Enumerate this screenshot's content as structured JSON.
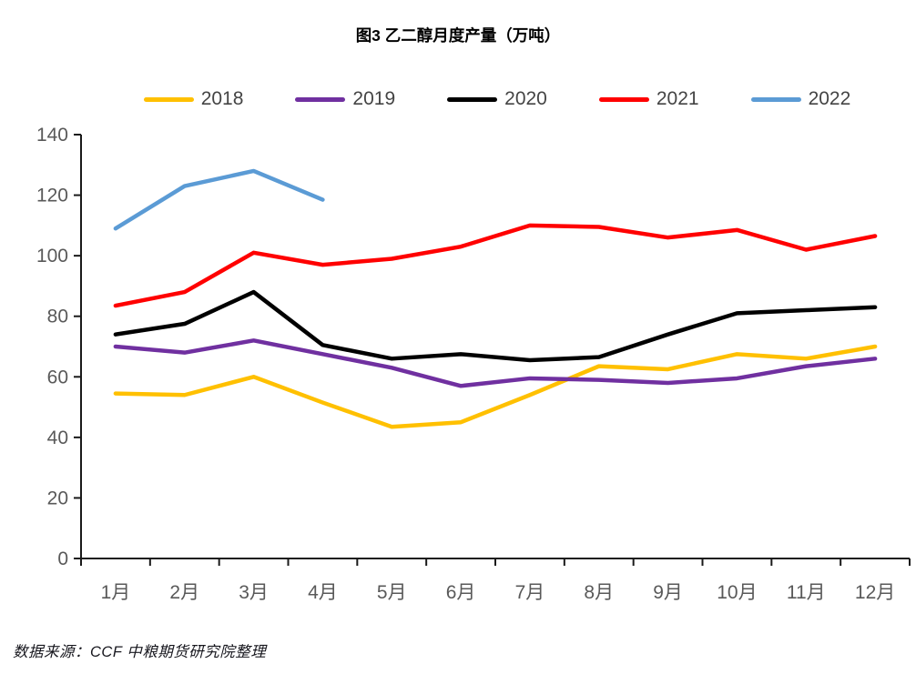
{
  "title": "图3 乙二醇月度产量（万吨）",
  "footer": "数据来源：CCF 中粮期货研究院整理",
  "chart_data": {
    "type": "line",
    "title": "图3 乙二醇月度产量（万吨）",
    "categories": [
      "1月",
      "2月",
      "3月",
      "4月",
      "5月",
      "6月",
      "7月",
      "8月",
      "9月",
      "10月",
      "11月",
      "12月"
    ],
    "series": [
      {
        "name": "2018",
        "color": "#FFC000",
        "values": [
          54.5,
          54,
          60,
          51.5,
          43.5,
          45,
          54,
          63.5,
          62.5,
          67.5,
          66,
          70
        ]
      },
      {
        "name": "2019",
        "color": "#7030A0",
        "values": [
          70,
          68,
          72,
          67.5,
          63,
          57,
          59.5,
          59,
          58,
          59.5,
          63.5,
          66
        ]
      },
      {
        "name": "2020",
        "color": "#000000",
        "values": [
          74,
          77.5,
          88,
          70.5,
          66,
          67.5,
          65.5,
          66.5,
          74,
          81,
          82,
          83
        ]
      },
      {
        "name": "2021",
        "color": "#FF0000",
        "values": [
          83.5,
          88,
          101,
          97,
          99,
          103,
          110,
          109.5,
          106,
          108.5,
          102,
          106.5
        ]
      },
      {
        "name": "2022",
        "color": "#5B9BD5",
        "values": [
          109,
          123,
          128,
          118.5,
          null,
          null,
          null,
          null,
          null,
          null,
          null,
          null
        ]
      }
    ],
    "xlabel": "",
    "ylabel": "",
    "ylim": [
      0,
      140
    ],
    "ytick_step": 20,
    "grid": false,
    "legend_position": "top"
  }
}
